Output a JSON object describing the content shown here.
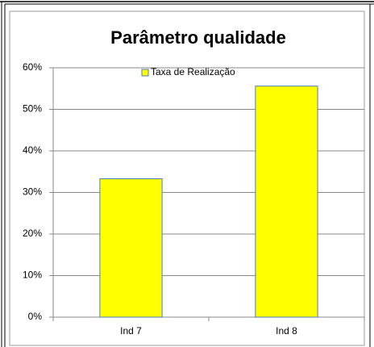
{
  "chart_data": {
    "type": "bar",
    "title": "Parâmetro qualidade",
    "categories": [
      "Ind 7",
      "Ind 8"
    ],
    "series": [
      {
        "name": "Taxa de Realização",
        "color": "#ffff00",
        "values": [
          33.3,
          55.6
        ]
      }
    ],
    "ylim": [
      0,
      60
    ],
    "yticks": [
      {
        "value": 0,
        "label": "0%"
      },
      {
        "value": 10,
        "label": "10%"
      },
      {
        "value": 20,
        "label": "20%"
      },
      {
        "value": 30,
        "label": "30%"
      },
      {
        "value": 40,
        "label": "40%"
      },
      {
        "value": 50,
        "label": "50%"
      },
      {
        "value": 60,
        "label": "60%"
      }
    ],
    "grid": true,
    "legend": "top"
  }
}
